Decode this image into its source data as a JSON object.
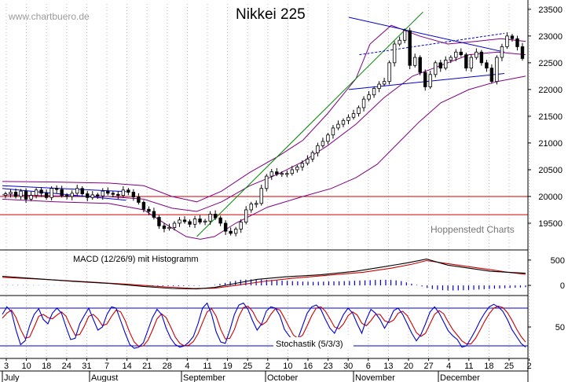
{
  "chart_data": {
    "type": "candlestick",
    "title": "Nikkei 225",
    "watermark": "www.chartbuero.de",
    "credit": "Hoppenstedt Charts",
    "price_panel": {
      "ylim": [
        19000,
        23600
      ],
      "ticks": [
        19500,
        20000,
        20500,
        21000,
        21500,
        22000,
        22500,
        23000,
        23500
      ],
      "horizontal_lines": [
        20000,
        19660
      ],
      "bollinger_upper": [
        [
          0,
          20280
        ],
        [
          15,
          20270
        ],
        [
          30,
          20250
        ],
        [
          40,
          20200
        ],
        [
          48,
          20000
        ],
        [
          55,
          19900
        ],
        [
          62,
          20100
        ],
        [
          70,
          20450
        ],
        [
          78,
          20750
        ],
        [
          85,
          21050
        ],
        [
          92,
          21550
        ],
        [
          100,
          22200
        ],
        [
          104,
          22850
        ],
        [
          110,
          23200
        ],
        [
          118,
          23000
        ],
        [
          126,
          22850
        ],
        [
          134,
          22900
        ],
        [
          141,
          22950
        ],
        [
          148,
          22900
        ]
      ],
      "bollinger_middle": [
        [
          0,
          20030
        ],
        [
          15,
          20010
        ],
        [
          30,
          20000
        ],
        [
          40,
          19950
        ],
        [
          48,
          19780
        ],
        [
          55,
          19720
        ],
        [
          62,
          19900
        ],
        [
          70,
          20200
        ],
        [
          78,
          20420
        ],
        [
          85,
          20650
        ],
        [
          92,
          20950
        ],
        [
          100,
          21350
        ],
        [
          108,
          21850
        ],
        [
          116,
          22250
        ],
        [
          124,
          22450
        ],
        [
          132,
          22650
        ],
        [
          140,
          22700
        ],
        [
          148,
          22650
        ]
      ],
      "bollinger_lower": [
        [
          0,
          19950
        ],
        [
          15,
          19900
        ],
        [
          30,
          19870
        ],
        [
          40,
          19750
        ],
        [
          47,
          19450
        ],
        [
          52,
          19250
        ],
        [
          56,
          19200
        ],
        [
          60,
          19250
        ],
        [
          66,
          19500
        ],
        [
          75,
          19800
        ],
        [
          85,
          20000
        ],
        [
          93,
          20150
        ],
        [
          100,
          20350
        ],
        [
          106,
          20600
        ],
        [
          112,
          21000
        ],
        [
          118,
          21400
        ],
        [
          124,
          21750
        ],
        [
          132,
          22000
        ],
        [
          140,
          22150
        ],
        [
          148,
          22250
        ]
      ],
      "trendlines": [
        {
          "color": "#008800",
          "dashed": false,
          "points": [
            [
              55,
              19250
            ],
            [
              119,
              23450
            ]
          ]
        },
        {
          "color": "#0000cc",
          "dashed": false,
          "points": [
            [
              98,
              23350
            ],
            [
              142,
              22700
            ]
          ]
        },
        {
          "color": "#0000cc",
          "dashed": false,
          "points": [
            [
              98,
              22000
            ],
            [
              142,
              22300
            ]
          ]
        },
        {
          "color": "#0000cc",
          "dashed": true,
          "points": [
            [
              101,
              22650
            ],
            [
              142,
              23050
            ]
          ]
        },
        {
          "color": "#0000cc",
          "dashed": false,
          "points": [
            [
              0,
              20150
            ],
            [
              35,
              19930
            ]
          ]
        },
        {
          "color": "#0000cc",
          "dashed": false,
          "points": [
            [
              0,
              20200
            ],
            [
              35,
              20090
            ]
          ]
        }
      ],
      "closes": [
        20050,
        20080,
        20000,
        20100,
        19950,
        20020,
        20120,
        20060,
        19980,
        20150,
        20130,
        20020,
        20000,
        20060,
        20150,
        20050,
        19980,
        20030,
        20010,
        20100,
        20060,
        20040,
        20020,
        20120,
        20080,
        19990,
        19890,
        19760,
        19720,
        19610,
        19450,
        19400,
        19420,
        19500,
        19560,
        19530,
        19480,
        19580,
        19520,
        19540,
        19670,
        19600,
        19500,
        19350,
        19310,
        19390,
        19520,
        19750,
        19860,
        19870,
        20150,
        20380,
        20460,
        20420,
        20430,
        20430,
        20500,
        20550,
        20620,
        20700,
        20820,
        20950,
        21030,
        21150,
        21280,
        21350,
        21420,
        21480,
        21550,
        21660,
        21820,
        21900,
        22020,
        22100,
        22150,
        22500,
        22850,
        22920,
        23100,
        22450,
        22600,
        22320,
        22050,
        22280,
        22500,
        22400,
        22550,
        22600,
        22700,
        22650,
        22400,
        22600,
        22700,
        22500,
        22400,
        22150,
        22600,
        22800,
        23000,
        22950,
        22800,
        22580
      ]
    },
    "macd_panel": {
      "label": "MACD (12/26/9) mit Histogramm",
      "ticks": [
        500,
        0
      ],
      "ylim": [
        -200,
        700
      ],
      "macd_line": [
        [
          0,
          180
        ],
        [
          10,
          130
        ],
        [
          20,
          80
        ],
        [
          30,
          40
        ],
        [
          40,
          -20
        ],
        [
          48,
          -60
        ],
        [
          55,
          -70
        ],
        [
          60,
          -40
        ],
        [
          66,
          40
        ],
        [
          72,
          120
        ],
        [
          80,
          170
        ],
        [
          90,
          210
        ],
        [
          100,
          280
        ],
        [
          108,
          370
        ],
        [
          115,
          450
        ],
        [
          120,
          520
        ],
        [
          126,
          400
        ],
        [
          132,
          340
        ],
        [
          138,
          280
        ],
        [
          143,
          260
        ],
        [
          148,
          240
        ]
      ],
      "signal_line": [
        [
          0,
          160
        ],
        [
          12,
          120
        ],
        [
          24,
          70
        ],
        [
          36,
          20
        ],
        [
          46,
          -30
        ],
        [
          54,
          -60
        ],
        [
          60,
          -55
        ],
        [
          66,
          0
        ],
        [
          74,
          80
        ],
        [
          82,
          140
        ],
        [
          92,
          200
        ],
        [
          102,
          260
        ],
        [
          110,
          340
        ],
        [
          116,
          420
        ],
        [
          120,
          490
        ],
        [
          126,
          430
        ],
        [
          132,
          370
        ],
        [
          138,
          310
        ],
        [
          143,
          260
        ],
        [
          148,
          220
        ]
      ],
      "histogram": [
        5,
        5,
        6,
        7,
        6,
        6,
        5,
        5,
        4,
        4,
        4,
        3,
        3,
        3,
        2,
        2,
        2,
        2,
        1,
        1,
        0,
        0,
        0,
        0,
        0,
        -1,
        -2,
        -4,
        -6,
        -9,
        -12,
        -14,
        -15,
        -15,
        -14,
        -12,
        -10,
        -8,
        -6,
        -3,
        0,
        10,
        30,
        50,
        75,
        90,
        110,
        115,
        120,
        118,
        115,
        112,
        108,
        100,
        95,
        90,
        85,
        80,
        75,
        72,
        70,
        72,
        75,
        78,
        80,
        82,
        85,
        88,
        92,
        96,
        100,
        104,
        108,
        110,
        112,
        108,
        100,
        85,
        60,
        35,
        10,
        -20,
        -50,
        -70,
        -85,
        -95,
        -100,
        -100,
        -98,
        -95,
        -90,
        -85,
        -80,
        -75,
        -70,
        -65,
        -60,
        -55,
        -50,
        -45,
        -40,
        -35
      ]
    },
    "stoch_panel": {
      "label": "Stochastik (5/3/3)",
      "ticks": [
        50
      ],
      "reference_lines": [
        80,
        20
      ],
      "k_line": [
        70,
        82,
        74,
        45,
        22,
        28,
        52,
        70,
        79,
        62,
        55,
        72,
        80,
        72,
        50,
        30,
        32,
        55,
        68,
        80,
        62,
        45,
        50,
        70,
        82,
        80,
        60,
        40,
        22,
        16,
        18,
        25,
        45,
        65,
        78,
        70,
        48,
        32,
        22,
        18,
        20,
        26,
        35,
        55,
        80,
        88,
        70,
        42,
        26,
        24,
        45,
        70,
        85,
        88,
        78,
        60,
        45,
        55,
        75,
        82,
        80,
        68,
        46,
        36,
        28,
        32,
        52,
        72,
        82,
        85,
        78,
        62,
        48,
        40,
        55,
        70,
        80,
        72,
        55,
        40,
        62,
        78,
        72,
        62,
        48,
        60,
        76,
        80,
        70,
        55,
        40,
        28,
        38,
        55,
        74,
        82,
        72,
        58,
        44,
        36,
        30,
        18,
        20,
        32,
        45,
        60,
        72,
        82,
        86,
        82,
        75,
        62,
        46,
        35,
        24,
        18
      ],
      "d_line": [
        64,
        72,
        77,
        65,
        46,
        32,
        34,
        50,
        67,
        70,
        65,
        63,
        69,
        74,
        67,
        51,
        37,
        38,
        51,
        67,
        70,
        63,
        52,
        55,
        67,
        77,
        74,
        60,
        41,
        26,
        19,
        20,
        29,
        45,
        63,
        71,
        65,
        50,
        34,
        24,
        20,
        21,
        27,
        39,
        57,
        74,
        79,
        67,
        46,
        31,
        32,
        46,
        67,
        81,
        83,
        75,
        61,
        53,
        58,
        70,
        79,
        77,
        64,
        50,
        37,
        32,
        37,
        52,
        68,
        80,
        82,
        75,
        63,
        50,
        47,
        55,
        68,
        74,
        69,
        56,
        52,
        60,
        70,
        70,
        60,
        57,
        61,
        72,
        75,
        68,
        55,
        41,
        35,
        40,
        55,
        70,
        76,
        71,
        58,
        46,
        37,
        28,
        23,
        23,
        32,
        45,
        59,
        71,
        80,
        83,
        81,
        73,
        61,
        47,
        35,
        26
      ]
    },
    "x_axis": {
      "day_labels": [
        "3",
        "10",
        "18",
        "24",
        "31",
        "7",
        "14",
        "21",
        "28",
        "4",
        "11",
        "19",
        "25",
        "2",
        "10",
        "16",
        "23",
        "30",
        "6",
        "13",
        "20",
        "27",
        "4",
        "11",
        "18",
        "25",
        "2"
      ],
      "month_labels": [
        "July",
        "August",
        "September",
        "October",
        "November",
        "December"
      ]
    }
  }
}
